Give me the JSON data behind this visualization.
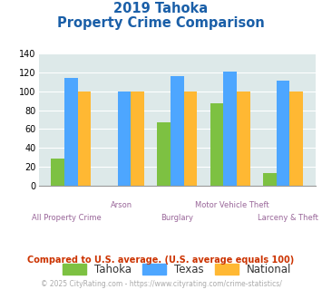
{
  "title_line1": "2019 Tahoka",
  "title_line2": "Property Crime Comparison",
  "categories": [
    "All Property Crime",
    "Arson",
    "Burglary",
    "Motor Vehicle Theft",
    "Larceny & Theft"
  ],
  "tahoka": [
    29,
    0,
    67,
    87,
    13
  ],
  "texas": [
    114,
    100,
    116,
    121,
    111
  ],
  "national": [
    100,
    100,
    100,
    100,
    100
  ],
  "bar_colors": {
    "tahoka": "#7dc142",
    "texas": "#4da6ff",
    "national": "#ffb833"
  },
  "ylim": [
    0,
    140
  ],
  "yticks": [
    0,
    20,
    40,
    60,
    80,
    100,
    120,
    140
  ],
  "background_color": "#dde9e9",
  "title_color": "#1a5fa8",
  "xlabel_color_bottom": "#996699",
  "xlabel_color_top": "#996699",
  "legend_labels": [
    "Tahoka",
    "Texas",
    "National"
  ],
  "footnote1": "Compared to U.S. average. (U.S. average equals 100)",
  "footnote2": "© 2025 CityRating.com - https://www.cityrating.com/crime-statistics/",
  "footnote1_color": "#cc3300",
  "footnote2_color": "#aaaaaa",
  "legend_text_color": "#333333"
}
